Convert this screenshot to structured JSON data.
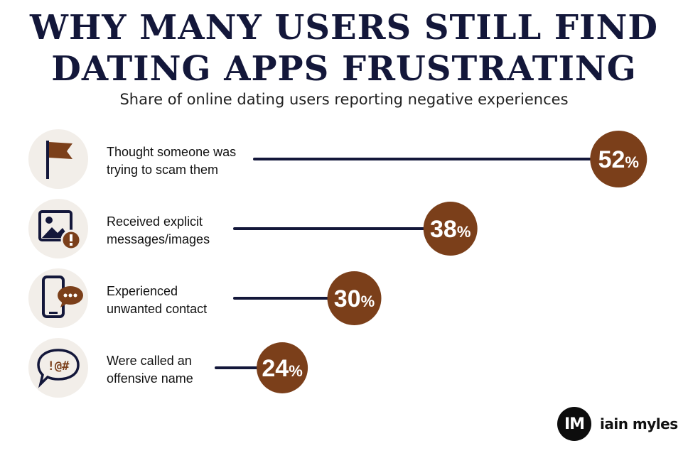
{
  "header": {
    "title_line1": "WHY MANY USERS STILL FIND",
    "title_line2": "DATING APPS FRUSTRATING",
    "subtitle": "Share of online dating users reporting negative experiences"
  },
  "colors": {
    "title": "#13173a",
    "line": "#13173a",
    "bubble": "#7b3f1a",
    "icon_bg": "#f2eee9"
  },
  "icons": [
    "flag-icon",
    "explicit-image-icon",
    "phone-message-icon",
    "offensive-speech-icon"
  ],
  "chart_data": {
    "type": "bar",
    "title": "WHY MANY USERS STILL FIND DATING APPS FRUSTRATING",
    "subtitle": "Share of online dating users reporting negative experiences",
    "categories": [
      "Thought someone was trying to scam them",
      "Received explicit messages/images",
      "Experienced unwanted contact",
      "Were called an offensive name"
    ],
    "label_lines": [
      [
        "Thought someone was",
        "trying to scam them"
      ],
      [
        "Received explicit",
        "messages/images"
      ],
      [
        "Experienced",
        "unwanted contact"
      ],
      [
        "Were called an",
        "offensive name"
      ]
    ],
    "values": [
      52,
      38,
      30,
      24
    ],
    "value_labels": [
      "52",
      "38",
      "30",
      "24"
    ],
    "unit": "%",
    "orientation": "horizontal",
    "xlim": [
      0,
      60
    ]
  },
  "brand": {
    "initials": "IM",
    "name": "iain myles"
  }
}
